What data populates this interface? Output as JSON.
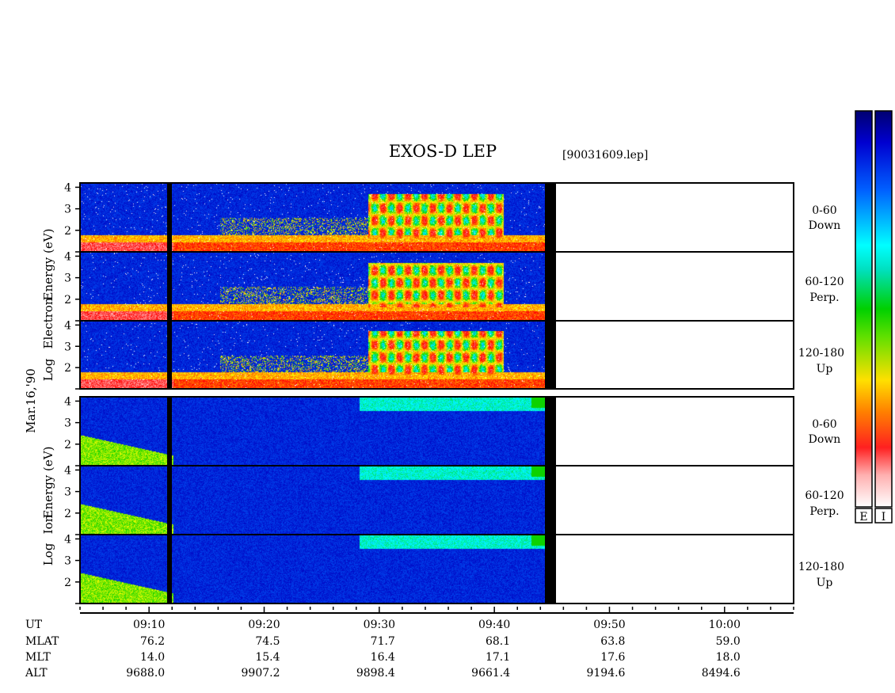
{
  "chart_data": {
    "type": "heatmap",
    "title": "EXOS-D LEP",
    "file_label": "[90031609.lep]",
    "date_label": "Mar.16,'90",
    "x_axis": {
      "unit": "UT",
      "range": [
        "09:04",
        "10:06"
      ],
      "tick_labels": [
        "09:10",
        "09:20",
        "09:30",
        "09:40",
        "09:50",
        "10:00"
      ]
    },
    "data_coverage": {
      "start": "09:04",
      "end": "09:43",
      "gap_at": "09:11",
      "off_band": [
        "09:43",
        "09:44"
      ]
    },
    "electron_panel": {
      "ylabel": "Log Electron Energy (eV)",
      "y_ticks": [
        "1",
        "2",
        "3",
        "4"
      ],
      "ylim": [
        1,
        4.2
      ],
      "subpanels": [
        {
          "label_angle": "0-60",
          "label_dir": "Down"
        },
        {
          "label_angle": "60-120",
          "label_dir": "Perp."
        },
        {
          "label_angle": "120-180",
          "label_dir": "Up"
        }
      ]
    },
    "ion_panel": {
      "ylabel": "Log Ion Energy (eV)",
      "y_ticks": [
        "1",
        "2",
        "3",
        "4"
      ],
      "ylim": [
        1,
        4.2
      ],
      "subpanels": [
        {
          "label_angle": "0-60",
          "label_dir": "Down"
        },
        {
          "label_angle": "60-120",
          "label_dir": "Perp."
        },
        {
          "label_angle": "120-180",
          "label_dir": "Up"
        }
      ]
    },
    "orbit_table": {
      "row_labels": [
        "UT",
        "MLAT",
        "MLT",
        "ALT"
      ],
      "columns": [
        {
          "UT": "09:10",
          "MLAT": "76.2",
          "MLT": "14.0",
          "ALT": "9688.0"
        },
        {
          "UT": "09:20",
          "MLAT": "74.5",
          "MLT": "15.4",
          "ALT": "9907.2"
        },
        {
          "UT": "09:30",
          "MLAT": "71.7",
          "MLT": "16.4",
          "ALT": "9898.4"
        },
        {
          "UT": "09:40",
          "MLAT": "68.1",
          "MLT": "17.1",
          "ALT": "9661.4"
        },
        {
          "UT": "09:50",
          "MLAT": "63.8",
          "MLT": "17.6",
          "ALT": "9194.6"
        },
        {
          "UT": "10:00",
          "MLAT": "59.0",
          "MLT": "18.0",
          "ALT": "8494.6"
        }
      ]
    },
    "colorbars": [
      {
        "label": "E"
      },
      {
        "label": "I"
      }
    ],
    "colorscale": [
      "#ffffff",
      "#ff8080",
      "#ff0000",
      "#ff8000",
      "#ffff00",
      "#00d000",
      "#00ffff",
      "#0060ff",
      "#0000c0",
      "#000060"
    ]
  }
}
